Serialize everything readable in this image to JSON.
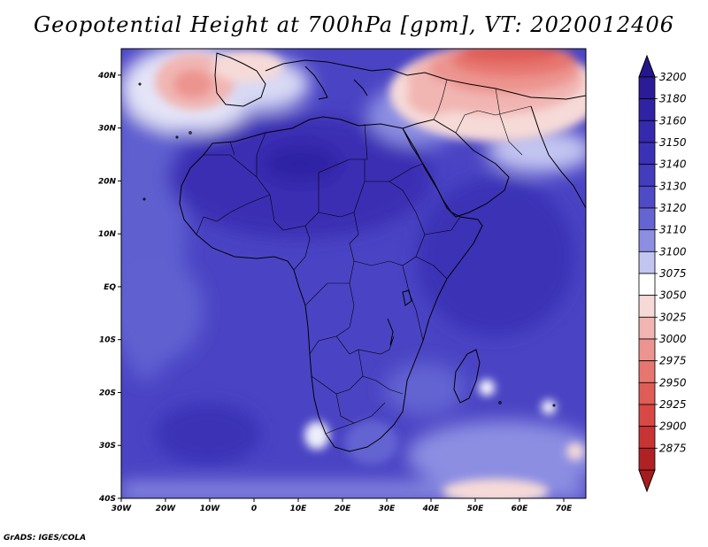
{
  "title": "Geopotential Height at 700hPa [gpm], VT: 2020012406",
  "footer": "GrADS: IGES/COLA",
  "map": {
    "lon_range": [
      -30,
      75
    ],
    "lat_range": [
      -40,
      45
    ],
    "lon_ticks": [
      {
        "value": -30,
        "label": "30W"
      },
      {
        "value": -20,
        "label": "20W"
      },
      {
        "value": -10,
        "label": "10W"
      },
      {
        "value": 0,
        "label": "0"
      },
      {
        "value": 10,
        "label": "10E"
      },
      {
        "value": 20,
        "label": "20E"
      },
      {
        "value": 30,
        "label": "30E"
      },
      {
        "value": 40,
        "label": "40E"
      },
      {
        "value": 50,
        "label": "50E"
      },
      {
        "value": 60,
        "label": "60E"
      },
      {
        "value": 70,
        "label": "70E"
      }
    ],
    "lat_ticks": [
      {
        "value": 40,
        "label": "40N"
      },
      {
        "value": 30,
        "label": "30N"
      },
      {
        "value": 20,
        "label": "20N"
      },
      {
        "value": 10,
        "label": "10N"
      },
      {
        "value": 0,
        "label": "EQ"
      },
      {
        "value": -10,
        "label": "10S"
      },
      {
        "value": -20,
        "label": "20S"
      },
      {
        "value": -30,
        "label": "30S"
      },
      {
        "value": -40,
        "label": "40S"
      }
    ]
  },
  "colorbar": {
    "levels": [
      {
        "label": "3200",
        "color": "#2b1b96"
      },
      {
        "label": "3180",
        "color": "#2f22a3"
      },
      {
        "label": "3160",
        "color": "#3529ae"
      },
      {
        "label": "3150",
        "color": "#3b31b6"
      },
      {
        "label": "3140",
        "color": "#443cbd"
      },
      {
        "label": "3130",
        "color": "#4f4ac6"
      },
      {
        "label": "3120",
        "color": "#6464d2"
      },
      {
        "label": "3110",
        "color": "#8c8ee2"
      },
      {
        "label": "3100",
        "color": "#c3c5f1"
      },
      {
        "label": "3075",
        "color": "#ffffff"
      },
      {
        "label": "3050",
        "color": "#f6dad8"
      },
      {
        "label": "3025",
        "color": "#f1b5b2"
      },
      {
        "label": "3000",
        "color": "#ec948f"
      },
      {
        "label": "2975",
        "color": "#e67670"
      },
      {
        "label": "2950",
        "color": "#e05d57"
      },
      {
        "label": "2925",
        "color": "#d84844"
      },
      {
        "label": "2900",
        "color": "#c83434"
      },
      {
        "label": "2875",
        "color": "#b02124"
      }
    ],
    "top_arrow_color": "#24168c",
    "bottom_arrow_color": "#a51c1e"
  }
}
